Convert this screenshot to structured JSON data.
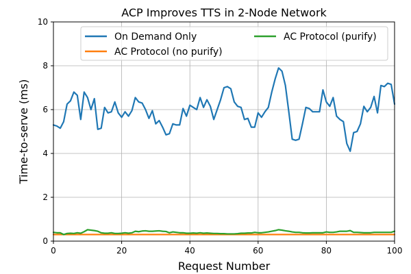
{
  "chart_data": {
    "type": "line",
    "title": "ACP Improves TTS in 2-Node Network",
    "xlabel": "Request Number",
    "ylabel": "Time-to-serve (ms)",
    "xlim": [
      0,
      100
    ],
    "ylim": [
      0,
      10
    ],
    "xticks": [
      "0",
      "20",
      "40",
      "60",
      "80",
      "100"
    ],
    "yticks": [
      "0",
      "2",
      "4",
      "6",
      "8",
      "10"
    ],
    "grid": true,
    "legend_position": "top",
    "series": [
      {
        "name": "On Demand Only",
        "color": "#1f77b4",
        "values": [
          5.3,
          5.25,
          5.15,
          5.45,
          6.25,
          6.4,
          6.8,
          6.65,
          5.55,
          6.8,
          6.55,
          6.0,
          6.5,
          5.1,
          5.15,
          6.1,
          5.85,
          5.9,
          6.35,
          5.85,
          5.65,
          5.9,
          5.7,
          5.95,
          6.55,
          6.35,
          6.3,
          6.0,
          5.6,
          5.95,
          5.35,
          5.5,
          5.2,
          4.85,
          4.9,
          5.35,
          5.3,
          5.3,
          6.05,
          5.7,
          6.2,
          6.1,
          6.0,
          6.55,
          6.1,
          6.45,
          6.15,
          5.55,
          6.0,
          6.45,
          7.0,
          7.05,
          6.95,
          6.35,
          6.15,
          6.1,
          5.55,
          5.6,
          5.2,
          5.2,
          5.85,
          5.65,
          5.9,
          6.1,
          6.8,
          7.4,
          7.9,
          7.75,
          7.1,
          5.9,
          4.65,
          4.6,
          4.65,
          5.35,
          6.1,
          6.05,
          5.9,
          5.9,
          5.9,
          6.9,
          6.35,
          6.15,
          6.55,
          5.7,
          5.55,
          5.45,
          4.45,
          4.1,
          4.95,
          5.0,
          5.35,
          6.15,
          5.9,
          6.1,
          6.6,
          5.85,
          7.1,
          7.05,
          7.2,
          7.15,
          6.25
        ]
      },
      {
        "name": "AC Protocol (no purify)",
        "color": "#ff7f0e",
        "values": [
          0.3,
          0.3,
          0.3,
          0.3,
          0.3,
          0.3,
          0.3,
          0.3,
          0.3,
          0.3,
          0.3,
          0.3,
          0.3,
          0.3,
          0.3,
          0.3,
          0.3,
          0.3,
          0.3,
          0.3,
          0.3,
          0.3,
          0.3,
          0.3,
          0.3,
          0.3,
          0.3,
          0.3,
          0.3,
          0.3,
          0.3,
          0.3,
          0.3,
          0.3,
          0.3,
          0.3,
          0.3,
          0.3,
          0.3,
          0.3,
          0.3,
          0.3,
          0.3,
          0.3,
          0.3,
          0.3,
          0.3,
          0.3,
          0.3,
          0.3,
          0.3,
          0.3,
          0.3,
          0.3,
          0.3,
          0.3,
          0.3,
          0.3,
          0.3,
          0.3,
          0.3,
          0.3,
          0.3,
          0.3,
          0.3,
          0.3,
          0.3,
          0.3,
          0.3,
          0.3,
          0.3,
          0.3,
          0.3,
          0.3,
          0.3,
          0.3,
          0.3,
          0.3,
          0.3,
          0.3,
          0.3,
          0.3,
          0.3,
          0.3,
          0.3,
          0.3,
          0.3,
          0.3,
          0.3,
          0.3,
          0.3,
          0.3,
          0.3,
          0.3,
          0.3,
          0.3,
          0.3,
          0.3,
          0.3,
          0.3,
          0.3
        ]
      },
      {
        "name": "AC Protocol (purify)",
        "color": "#2ca02c",
        "values": [
          0.4,
          0.38,
          0.38,
          0.3,
          0.35,
          0.36,
          0.35,
          0.38,
          0.36,
          0.43,
          0.52,
          0.5,
          0.48,
          0.45,
          0.38,
          0.36,
          0.36,
          0.38,
          0.35,
          0.35,
          0.36,
          0.38,
          0.36,
          0.38,
          0.45,
          0.43,
          0.46,
          0.47,
          0.45,
          0.45,
          0.46,
          0.47,
          0.45,
          0.44,
          0.38,
          0.42,
          0.4,
          0.38,
          0.38,
          0.36,
          0.36,
          0.37,
          0.36,
          0.38,
          0.36,
          0.37,
          0.36,
          0.35,
          0.35,
          0.34,
          0.34,
          0.33,
          0.33,
          0.33,
          0.34,
          0.36,
          0.36,
          0.37,
          0.37,
          0.4,
          0.38,
          0.38,
          0.4,
          0.42,
          0.45,
          0.48,
          0.52,
          0.5,
          0.47,
          0.45,
          0.42,
          0.4,
          0.4,
          0.38,
          0.37,
          0.37,
          0.38,
          0.38,
          0.38,
          0.38,
          0.42,
          0.4,
          0.4,
          0.42,
          0.45,
          0.45,
          0.45,
          0.48,
          0.4,
          0.4,
          0.39,
          0.38,
          0.38,
          0.38,
          0.4,
          0.4,
          0.4,
          0.4,
          0.4,
          0.4,
          0.45
        ]
      }
    ]
  }
}
